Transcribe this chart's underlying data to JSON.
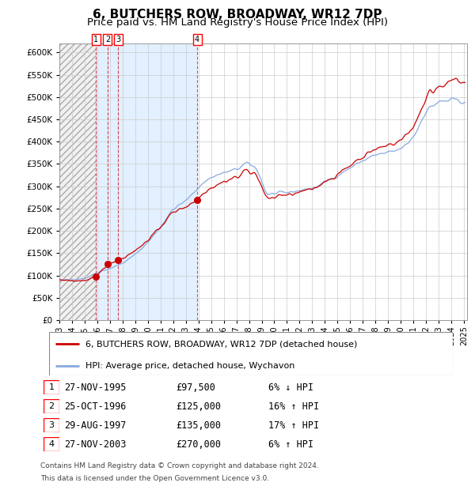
{
  "title": "6, BUTCHERS ROW, BROADWAY, WR12 7DP",
  "subtitle": "Price paid vs. HM Land Registry's House Price Index (HPI)",
  "title_fontsize": 11,
  "subtitle_fontsize": 9.5,
  "ytick_values": [
    0,
    50000,
    100000,
    150000,
    200000,
    250000,
    300000,
    350000,
    400000,
    450000,
    500000,
    550000,
    600000
  ],
  "ylim_max": 620000,
  "hpi_line_color": "#88aadd",
  "property_line_color": "#cc0000",
  "transactions": [
    {
      "label": "1",
      "date": "1995-11-27",
      "price": 97500,
      "note": "6% ↓ HPI"
    },
    {
      "label": "2",
      "date": "1996-10-25",
      "price": 125000,
      "note": "16% ↑ HPI"
    },
    {
      "label": "3",
      "date": "1997-08-29",
      "price": 135000,
      "note": "17% ↑ HPI"
    },
    {
      "label": "4",
      "date": "2003-11-27",
      "price": 270000,
      "note": "6% ↑ HPI"
    }
  ],
  "legend_property": "6, BUTCHERS ROW, BROADWAY, WR12 7DP (detached house)",
  "legend_hpi": "HPI: Average price, detached house, Wychavon",
  "table_rows": [
    {
      "num": "1",
      "date": "27-NOV-1995",
      "price": "£97,500",
      "note": "6% ↓ HPI"
    },
    {
      "num": "2",
      "date": "25-OCT-1996",
      "price": "£125,000",
      "note": "16% ↑ HPI"
    },
    {
      "num": "3",
      "date": "29-AUG-1997",
      "price": "£135,000",
      "note": "17% ↑ HPI"
    },
    {
      "num": "4",
      "date": "27-NOV-2003",
      "price": "£270,000",
      "note": "6% ↑ HPI"
    }
  ],
  "footer_line1": "Contains HM Land Registry data © Crown copyright and database right 2024.",
  "footer_line2": "This data is licensed under the Open Government Licence v3.0.",
  "hatch_facecolor": "#e8e8e8",
  "shade_facecolor": "#ddeeff",
  "grid_color": "#cccccc",
  "start_year": 1993,
  "end_year": 2025
}
